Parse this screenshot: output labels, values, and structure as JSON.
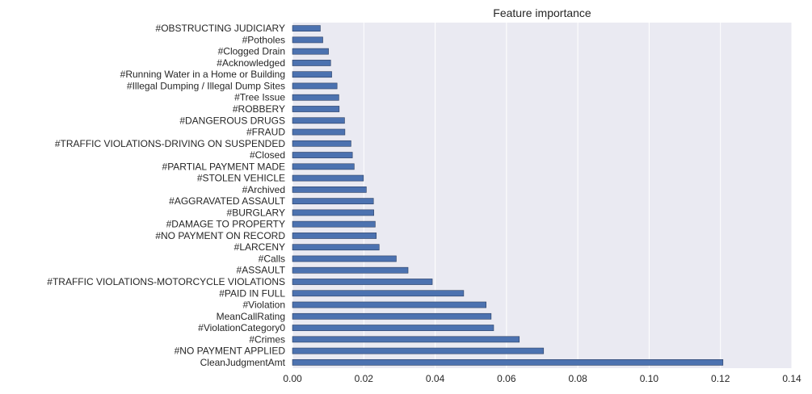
{
  "chart_data": {
    "type": "bar",
    "orientation": "horizontal",
    "title": "Feature importance",
    "xlabel": "",
    "ylabel": "",
    "xlim": [
      0,
      0.14
    ],
    "xticks": [
      "0.00",
      "0.02",
      "0.04",
      "0.06",
      "0.08",
      "0.10",
      "0.12",
      "0.14"
    ],
    "grid": true,
    "bar_color": "#4c72b0",
    "background_color": "#eaeaf2",
    "categories": [
      "#OBSTRUCTING JUDICIARY",
      "#Potholes",
      "#Clogged Drain",
      "#Acknowledged",
      "#Running Water in a Home or Building",
      "#Illegal Dumping / Illegal Dump Sites",
      "#Tree Issue",
      "#ROBBERY",
      "#DANGEROUS DRUGS",
      "#FRAUD",
      "#TRAFFIC VIOLATIONS-DRIVING ON SUSPENDED",
      "#Closed",
      "#PARTIAL PAYMENT MADE",
      "#STOLEN VEHICLE",
      "#Archived",
      "#AGGRAVATED ASSAULT",
      "#BURGLARY",
      "#DAMAGE TO PROPERTY",
      "#NO PAYMENT ON RECORD",
      "#LARCENY",
      "#Calls",
      "#ASSAULT",
      "#TRAFFIC VIOLATIONS-MOTORCYCLE VIOLATIONS",
      "#PAID IN FULL",
      "#Violation",
      "MeanCallRating",
      "#ViolationCategory0",
      "#Crimes",
      "#NO PAYMENT APPLIED",
      "CleanJudgmentAmt"
    ],
    "values": [
      0.0078,
      0.0085,
      0.0101,
      0.0107,
      0.011,
      0.0125,
      0.013,
      0.0131,
      0.0146,
      0.0147,
      0.0164,
      0.0168,
      0.0173,
      0.0199,
      0.0207,
      0.0227,
      0.0228,
      0.0232,
      0.0235,
      0.0243,
      0.0291,
      0.0324,
      0.0392,
      0.048,
      0.0543,
      0.0557,
      0.0564,
      0.0636,
      0.0704,
      0.1207
    ]
  }
}
